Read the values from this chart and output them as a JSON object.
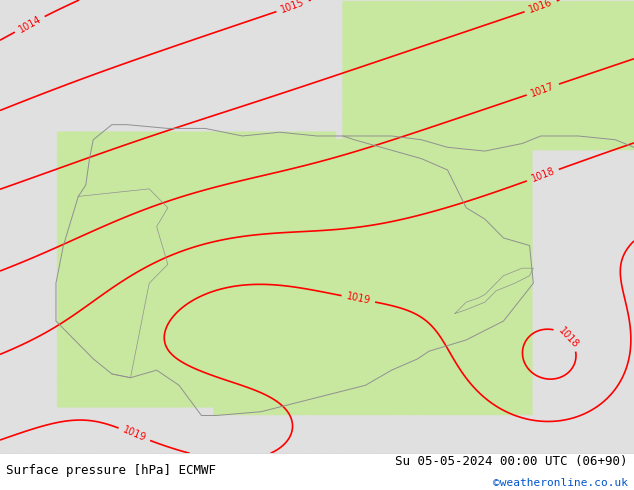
{
  "title_left": "Surface pressure [hPa] ECMWF",
  "title_right": "Su 05-05-2024 00:00 UTC (06+90)",
  "copyright": "©weatheronline.co.uk",
  "fig_width": 6.34,
  "fig_height": 4.9,
  "dpi": 100,
  "bg_color": "#e0e0e0",
  "land_color_iberia": "#c8e8a0",
  "land_color_france": "#c8e8a0",
  "contour_color_red": "#ff0000",
  "contour_color_black": "#000000",
  "contour_color_blue": "#0000cc",
  "bottom_bar_color": "#ffffff",
  "text_color_main": "#000000",
  "text_color_copy": "#0055cc",
  "lon_min": -11.0,
  "lon_max": 6.0,
  "lat_min": 35.0,
  "lat_max": 47.0
}
